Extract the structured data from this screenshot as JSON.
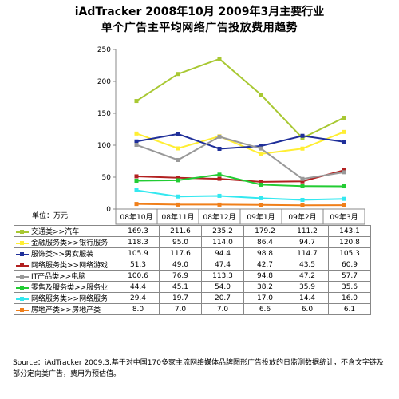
{
  "title_line1": "iAdTracker 2008年10月 2009年3月主要行业",
  "title_line2": "单个广告主平均网络广告投放费用趋势",
  "unit_label": "单位：万元",
  "source": "Source：iAdTracker 2009.3.基于对中国170多家主流网络媒体品牌图形广告投放的日监测数据统计，不含文字链及部分定向类广告，费用为预估值。",
  "chart_data": {
    "type": "line",
    "title": "iAdTracker 2008年10月 2009年3月主要行业 单个广告主平均网络广告投放费用趋势",
    "ylabel": "单位：万元",
    "categories": [
      "08年10月",
      "08年11月",
      "08年12月",
      "09年1月",
      "09年2月",
      "09年3月"
    ],
    "ylim": [
      0,
      250
    ],
    "yticks": [
      0,
      50,
      100,
      150,
      200,
      250
    ],
    "grid": false,
    "legend": "table-below",
    "series": [
      {
        "name": "交通类>>汽车",
        "color": "#a8c832",
        "marker": "square",
        "values": [
          169.3,
          211.6,
          235.2,
          179.2,
          111.2,
          143.1
        ],
        "labels": [
          "169.3",
          "211.6",
          "235.2",
          "179.2",
          "111.2",
          "143.1"
        ]
      },
      {
        "name": "金融服务类>>银行服务",
        "color": "#ffee33",
        "marker": "square",
        "values": [
          118.3,
          95.0,
          114.0,
          86.4,
          94.7,
          120.8
        ],
        "labels": [
          "118.3",
          "95.0",
          "114.0",
          "86.4",
          "94.7",
          "120.8"
        ]
      },
      {
        "name": "服饰类>>男女服装",
        "color": "#1f2f9a",
        "marker": "square",
        "values": [
          105.9,
          117.6,
          94.4,
          98.8,
          114.7,
          105.3
        ],
        "labels": [
          "105.9",
          "117.6",
          "94.4",
          "98.8",
          "114.7",
          "105.3"
        ]
      },
      {
        "name": "网络服务类>>网络游戏",
        "color": "#b22020",
        "marker": "square",
        "values": [
          51.3,
          49.0,
          47.4,
          42.7,
          43.5,
          60.9
        ],
        "labels": [
          "51.3",
          "49.0",
          "47.4",
          "42.7",
          "43.5",
          "60.9"
        ]
      },
      {
        "name": "IT产品类>>电脑",
        "color": "#999999",
        "marker": "square",
        "values": [
          100.6,
          76.9,
          113.3,
          94.8,
          47.2,
          57.7
        ],
        "labels": [
          "100.6",
          "76.9",
          "113.3",
          "94.8",
          "47.2",
          "57.7"
        ]
      },
      {
        "name": "零售及服务类>>服务业",
        "color": "#22cc33",
        "marker": "square",
        "values": [
          44.4,
          45.1,
          54.0,
          38.2,
          35.9,
          35.6
        ],
        "labels": [
          "44.4",
          "45.1",
          "54.0",
          "38.2",
          "35.9",
          "35.6"
        ]
      },
      {
        "name": "网络服务类>>网络服务",
        "color": "#33e8f0",
        "marker": "square",
        "values": [
          29.4,
          19.7,
          20.7,
          17.0,
          14.4,
          16.0
        ],
        "labels": [
          "29.4",
          "19.7",
          "20.7",
          "17.0",
          "14.4",
          "16.0"
        ]
      },
      {
        "name": "房地产类>>房地产类",
        "color": "#f07f1a",
        "marker": "square",
        "values": [
          8.0,
          7.0,
          7.0,
          6.6,
          6.0,
          6.1
        ],
        "labels": [
          "8.0",
          "7.0",
          "7.0",
          "6.6",
          "6.0",
          "6.1"
        ]
      }
    ]
  }
}
